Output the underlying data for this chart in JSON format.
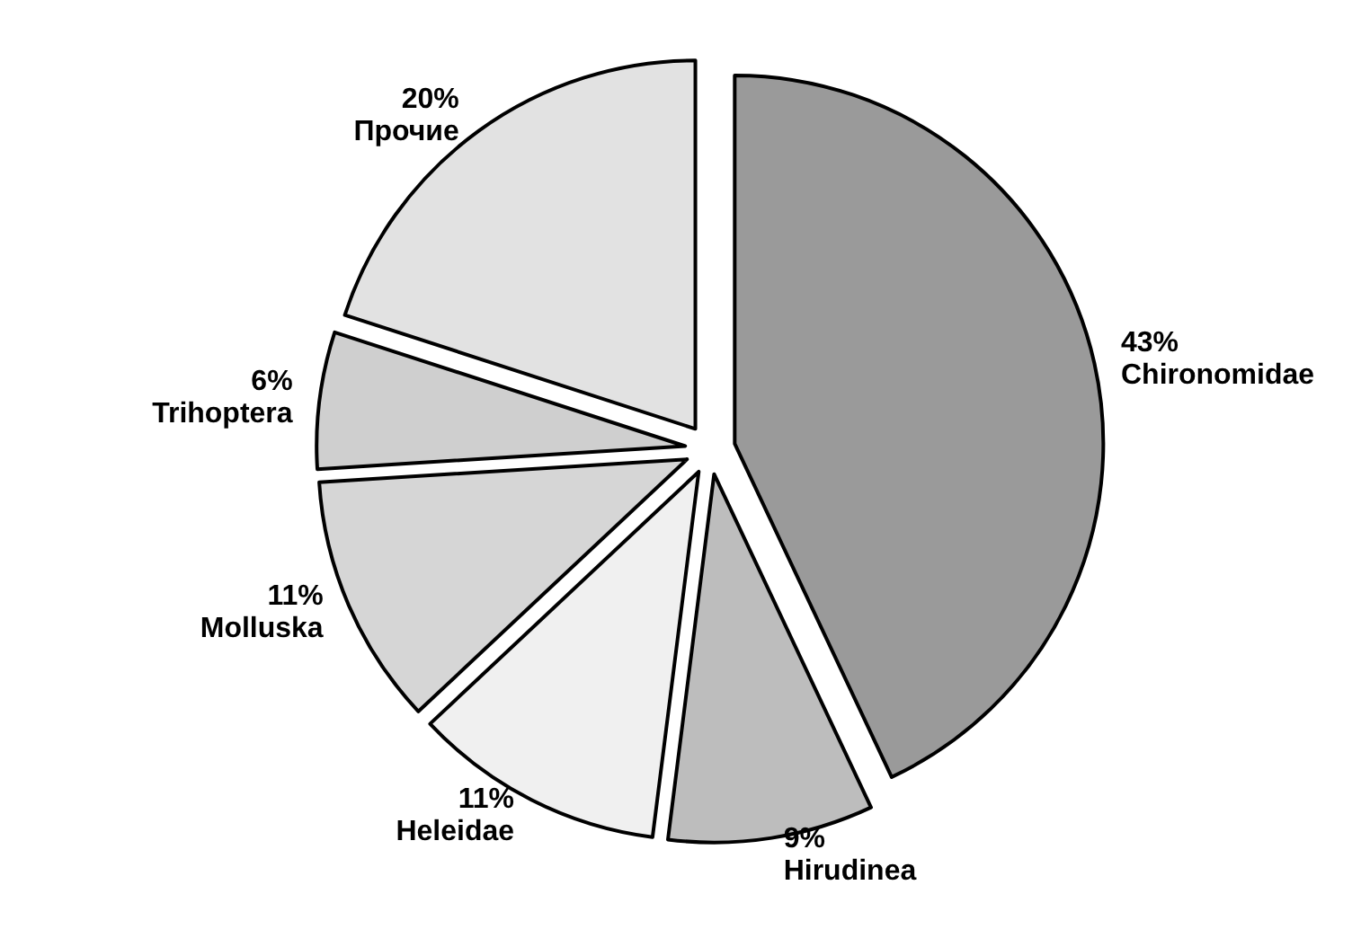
{
  "chart_data": {
    "type": "pie",
    "categories": [
      "Chironomidae",
      "Hirudinea",
      "Heleidae",
      "Molluska",
      "Trihoptera",
      "Прочие"
    ],
    "values": [
      43,
      9,
      11,
      11,
      6,
      20
    ],
    "value_labels": [
      "43%",
      "9%",
      "11%",
      "11%",
      "6%",
      "20%"
    ],
    "colors": [
      "#9a9a9a",
      "#bdbdbd",
      "#f0f0f0",
      "#d6d6d6",
      "#cfcfcf",
      "#e2e2e2"
    ]
  }
}
